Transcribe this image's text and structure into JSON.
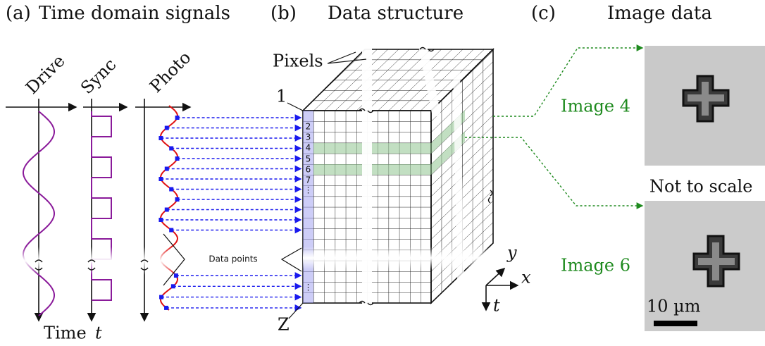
{
  "panel_a": {
    "letter": "(a)",
    "title": "Time domain signals",
    "drive": "Drive",
    "sync": "Sync",
    "photo": "Photo",
    "time": "Time",
    "time_var": "t",
    "data_points": "Data points"
  },
  "panel_b": {
    "letter": "(b)",
    "title": "Data structure",
    "pixels": "Pixels",
    "first": "1",
    "last": "Z",
    "rows": [
      "2",
      "3",
      "4",
      "5",
      "6",
      "7",
      "⋮",
      "⋮"
    ],
    "axis_y": "y",
    "axis_x": "x",
    "axis_t": "t"
  },
  "panel_c": {
    "letter": "(c)",
    "title": "Image data",
    "image_a": "Image 4",
    "image_b": "Image 6",
    "note": "Not to scale",
    "scale": "10 µm"
  }
}
